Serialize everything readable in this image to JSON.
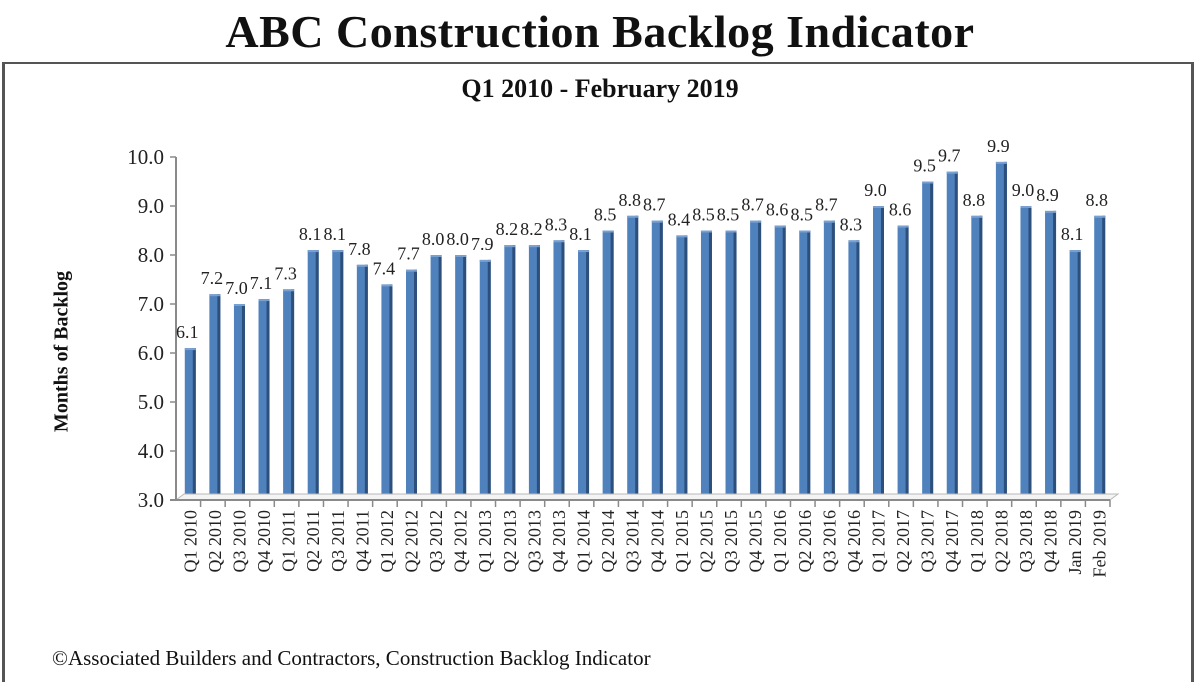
{
  "title": "ABC Construction Backlog Indicator",
  "subtitle": "Q1 2010 - February 2019",
  "footer": "©Associated Builders and Contractors, Construction Backlog Indicator",
  "colors": {
    "bar": "#4f81bd",
    "bar_dark": "#2c4f7c",
    "axis": "#8a8a8a",
    "frame": "#555555"
  },
  "chart_data": {
    "type": "bar",
    "title": "ABC Construction Backlog Indicator",
    "subtitle": "Q1 2010 - February 2019",
    "xlabel": "",
    "ylabel": "Months of Backlog",
    "ylim": [
      3.0,
      10.0
    ],
    "yticks": [
      "3.0",
      "4.0",
      "5.0",
      "6.0",
      "7.0",
      "8.0",
      "9.0",
      "10.0"
    ],
    "grid": false,
    "legend": null,
    "categories": [
      "Q1 2010",
      "Q2 2010",
      "Q3 2010",
      "Q4 2010",
      "Q1 2011",
      "Q2 2011",
      "Q3 2011",
      "Q4 2011",
      "Q1 2012",
      "Q2 2012",
      "Q3 2012",
      "Q4 2012",
      "Q1 2013",
      "Q2 2013",
      "Q3 2013",
      "Q4 2013",
      "Q1 2014",
      "Q2 2014",
      "Q3 2014",
      "Q4 2014",
      "Q1 2015",
      "Q2 2015",
      "Q3 2015",
      "Q4 2015",
      "Q1 2016",
      "Q2 2016",
      "Q3 2016",
      "Q4 2016",
      "Q1 2017",
      "Q2 2017",
      "Q3 2017",
      "Q4 2017",
      "Q1 2018",
      "Q2 2018",
      "Q3 2018",
      "Q4 2018",
      "Jan 2019",
      "Feb 2019"
    ],
    "values": [
      6.1,
      7.2,
      7.0,
      7.1,
      7.3,
      8.1,
      8.1,
      7.8,
      7.4,
      7.7,
      8.0,
      8.0,
      7.9,
      8.2,
      8.2,
      8.3,
      8.1,
      8.5,
      8.8,
      8.7,
      8.4,
      8.5,
      8.5,
      8.7,
      8.6,
      8.5,
      8.7,
      8.3,
      9.0,
      8.6,
      9.5,
      9.7,
      8.8,
      9.9,
      9.0,
      8.9,
      8.1,
      8.8
    ],
    "data_labels": [
      "6.1",
      "7.2",
      "7.0",
      "7.1",
      "7.3",
      "8.1",
      "8.1",
      "7.8",
      "7.4",
      "7.7",
      "8.0",
      "8.0",
      "7.9",
      "8.2",
      "8.2",
      "8.3",
      "8.1",
      "8.5",
      "8.8",
      "8.7",
      "8.4",
      "8.5",
      "8.5",
      "8.7",
      "8.6",
      "8.5",
      "8.7",
      "8.3",
      "9.0",
      "8.6",
      "9.5",
      "9.7",
      "8.8",
      "9.9",
      "9.0",
      "8.9",
      "8.1",
      "8.8"
    ]
  }
}
